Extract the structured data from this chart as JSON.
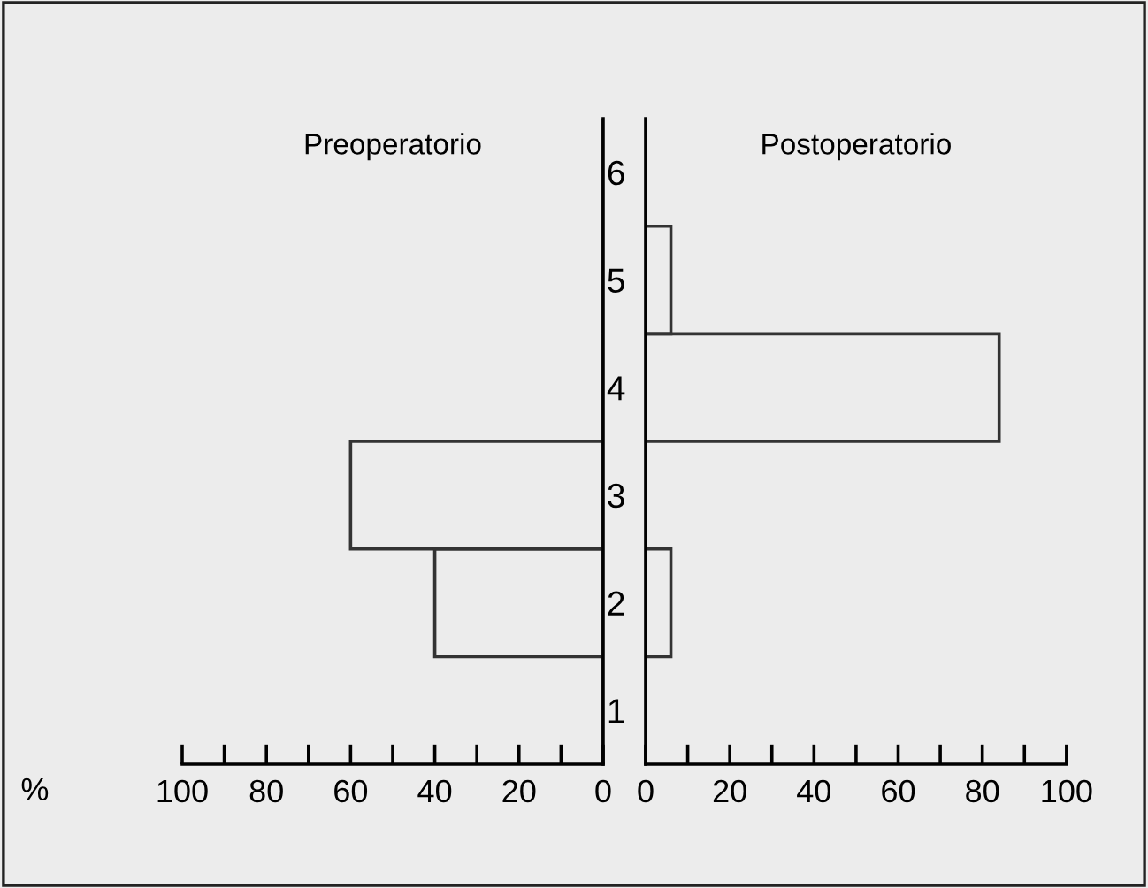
{
  "chart_data": [
    {
      "type": "bar",
      "orientation": "horizontal",
      "title": "Preoperatorio",
      "xlabel": "%",
      "categories": [
        "6",
        "5",
        "4",
        "3",
        "2",
        "1"
      ],
      "series": [
        {
          "color": "#333333",
          "values": [
            0,
            0,
            0,
            60,
            40,
            0
          ]
        }
      ],
      "xlim": [
        100,
        0
      ],
      "xticks": [
        100,
        {
          "value": 90,
          "label": null
        },
        80,
        {
          "value": 70,
          "label": null
        },
        60,
        {
          "value": 50,
          "label": null
        },
        40,
        {
          "value": 30,
          "label": null
        },
        20,
        {
          "value": 10,
          "label": null
        },
        0
      ],
      "tick_labels": "x",
      "grid": false,
      "legend": false
    },
    {
      "type": "bar",
      "orientation": "horizontal",
      "title": "Postoperatorio",
      "categories": [
        "6",
        "5",
        "4",
        "3",
        "2",
        "1"
      ],
      "series": [
        {
          "color": "#333333",
          "values": [
            0,
            6,
            84,
            0,
            6,
            0
          ]
        }
      ],
      "xlim": [
        0,
        100
      ],
      "xticks": [
        0,
        {
          "value": 10,
          "label": null
        },
        20,
        {
          "value": 30,
          "label": null
        },
        40,
        {
          "value": 50,
          "label": null
        },
        60,
        {
          "value": 70,
          "label": null
        },
        80,
        {
          "value": 90,
          "label": null
        },
        100
      ],
      "grid": false,
      "legend": false
    }
  ]
}
